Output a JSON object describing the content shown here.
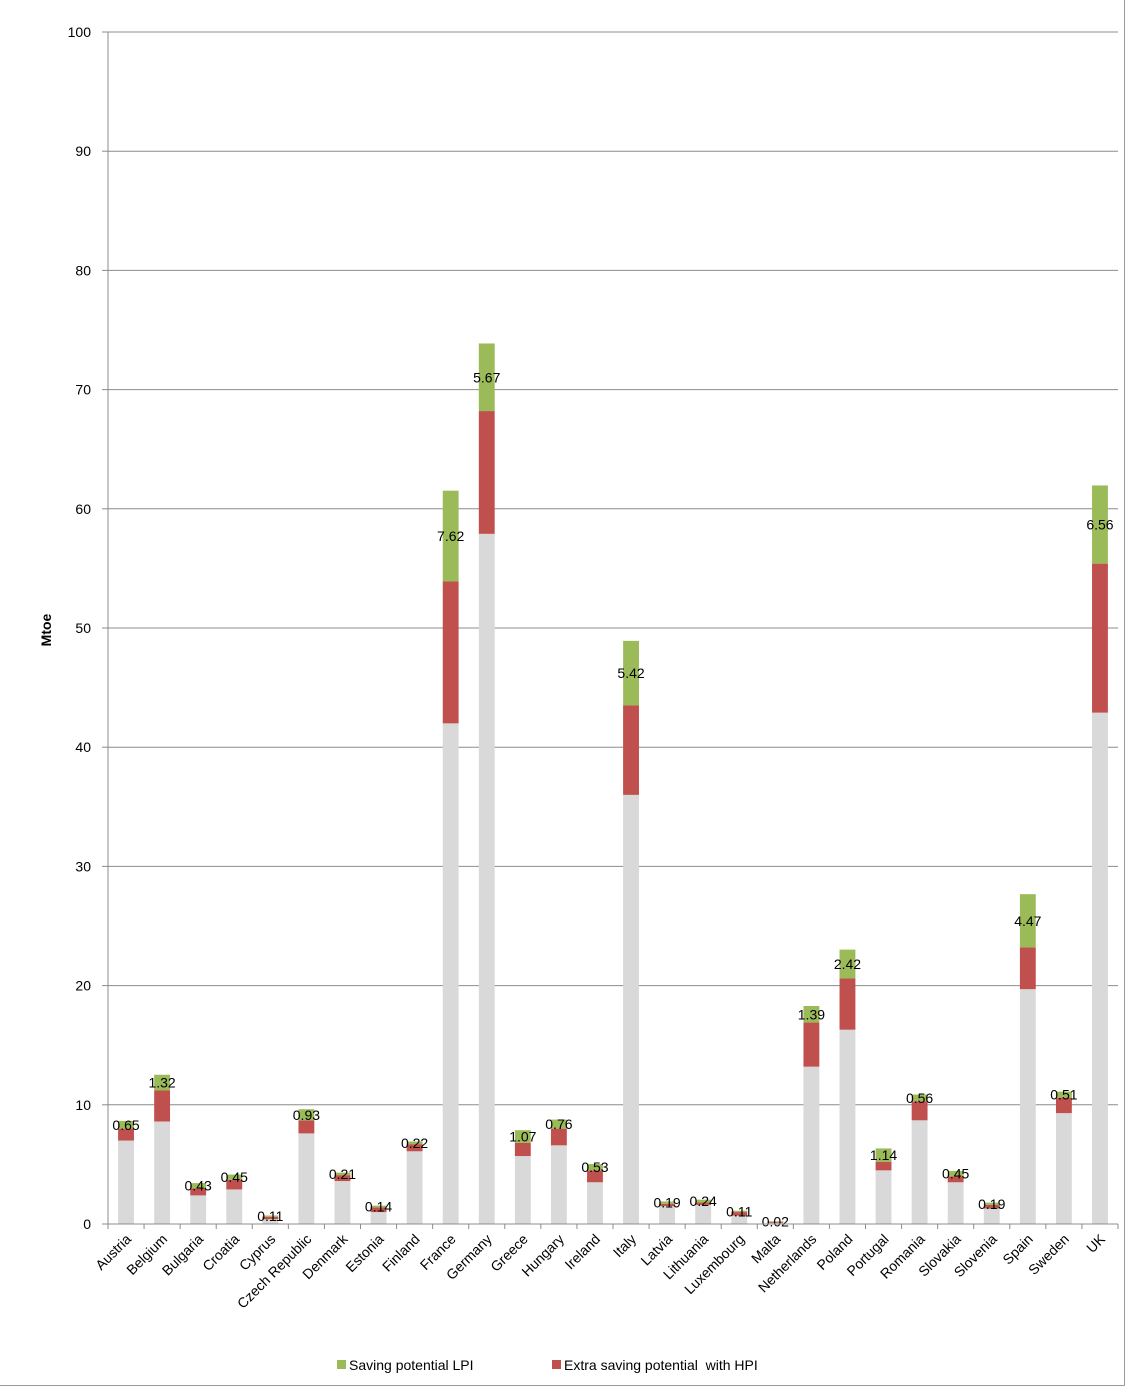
{
  "chart_data": {
    "type": "bar",
    "stacked": true,
    "title": "",
    "xlabel": "",
    "ylabel": "Mtoe",
    "ylim": [
      0,
      100
    ],
    "yticks": [
      0,
      10,
      20,
      30,
      40,
      50,
      60,
      70,
      80,
      90,
      100
    ],
    "grid": true,
    "legend_position": "bottom",
    "categories": [
      "Austria",
      "Belgium",
      "Bulgaria",
      "Croatia",
      "Cyprus",
      "Czech Republic",
      "Denmark",
      "Estonia",
      "Finland",
      "France",
      "Germany",
      "Greece",
      "Hungary",
      "Ireland",
      "Italy",
      "Latvia",
      "Lithuania",
      "Luxembourg",
      "Malta",
      "Netherlands",
      "Poland",
      "Portugal",
      "Romania",
      "Slovakia",
      "Slovenia",
      "Spain",
      "Sweden",
      "UK"
    ],
    "series": [
      {
        "color": "#d9d9d9",
        "values": [
          7.0,
          8.6,
          2.4,
          2.9,
          0.4,
          7.6,
          3.6,
          1.0,
          6.1,
          42.0,
          57.9,
          5.7,
          6.6,
          3.5,
          36.0,
          1.5,
          1.6,
          0.7,
          0.1,
          13.2,
          16.3,
          4.5,
          8.7,
          3.5,
          1.3,
          19.7,
          9.3,
          42.9
        ]
      },
      {
        "name": "Extra saving potential  with HPI",
        "color": "#c0504d",
        "values": [
          1.0,
          2.6,
          0.6,
          0.8,
          0.2,
          1.1,
          0.5,
          0.4,
          0.6,
          11.9,
          10.3,
          1.1,
          1.4,
          1.0,
          7.5,
          0.2,
          0.2,
          0.3,
          0.1,
          3.7,
          4.3,
          0.7,
          1.6,
          0.5,
          0.3,
          3.5,
          1.3,
          12.5
        ]
      },
      {
        "name": "Saving potential LPI",
        "color": "#9bbb59",
        "values": [
          0.65,
          1.32,
          0.43,
          0.45,
          0.11,
          0.93,
          0.21,
          0.14,
          0.22,
          7.62,
          5.67,
          1.07,
          0.76,
          0.53,
          5.42,
          0.19,
          0.24,
          0.11,
          0.02,
          1.39,
          2.42,
          1.14,
          0.56,
          0.45,
          0.19,
          4.47,
          0.51,
          6.56
        ],
        "labels": [
          "0.65",
          "1.32",
          "0.43",
          "0.45",
          "0.11",
          "0.93",
          "0.21",
          "0.14",
          "0.22",
          "7.62",
          "5.67",
          "1.07",
          "0.76",
          "0.53",
          "5.42",
          "0.19",
          "0.24",
          "0.11",
          "0.02",
          "1.39",
          "2.42",
          "1.14",
          "0.56",
          "0.45",
          "0.19",
          "4.47",
          "0.51",
          "6.56"
        ]
      }
    ],
    "legend": [
      {
        "label": "Saving potential LPI",
        "color": "#9bbb59"
      },
      {
        "label": "Extra saving potential  with HPI",
        "color": "#c0504d"
      }
    ]
  }
}
